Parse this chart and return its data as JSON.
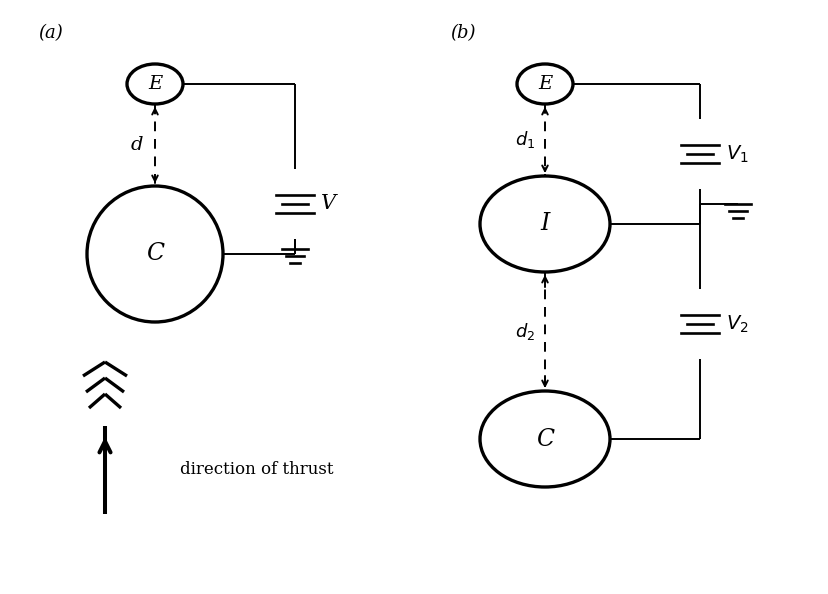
{
  "fig_width": 8.29,
  "fig_height": 5.94,
  "bg_color": "#ffffff",
  "line_color": "#000000",
  "lw_thin": 1.4,
  "lw_thick": 2.4,
  "label_a": "(a)",
  "label_b": "(b)",
  "direction_text": "direction of thrust"
}
